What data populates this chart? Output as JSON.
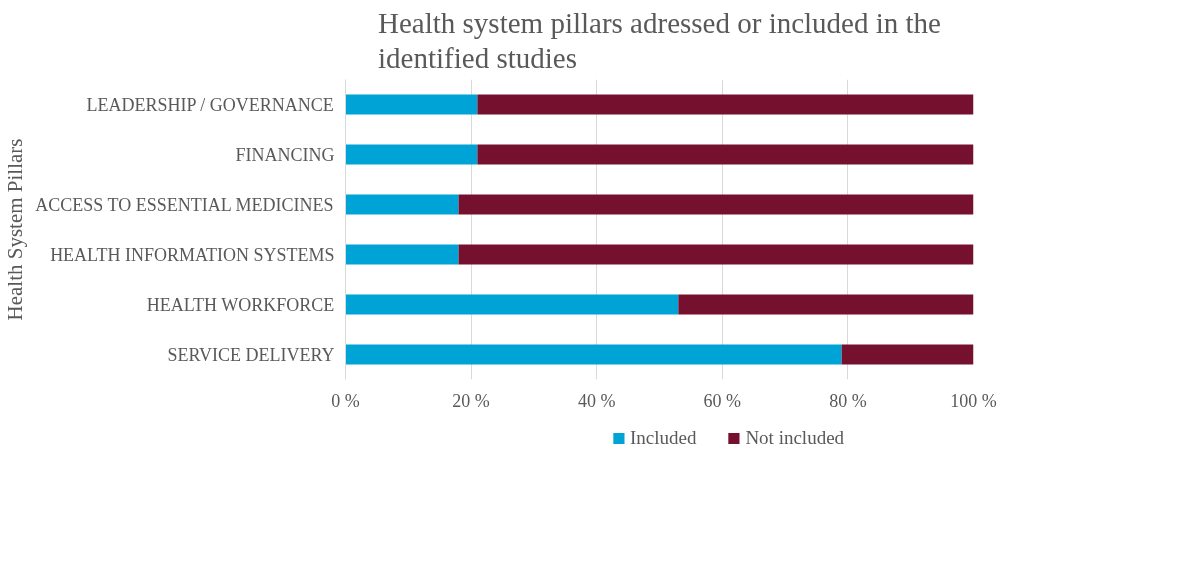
{
  "chart_data": {
    "type": "bar",
    "orientation": "horizontal",
    "stacked": true,
    "title": "Health system pillars adressed or included in the identified studies",
    "ylabel": "Health System Pillars",
    "categories": [
      "LEADERSHIP / GOVERNANCE",
      "FINANCING",
      "ACCESS TO ESSENTIAL MEDICINES",
      "HEALTH INFORMATION SYSTEMS",
      "HEALTH WORKFORCE",
      "SERVICE DELIVERY"
    ],
    "series": [
      {
        "name": "Included",
        "color": "#00a3d6",
        "values": [
          21,
          21,
          18,
          18,
          53,
          79
        ]
      },
      {
        "name": "Not included",
        "color": "#76102f",
        "values": [
          79,
          79,
          82,
          82,
          47,
          21
        ]
      }
    ],
    "xlim": [
      0,
      100
    ],
    "xticks": [
      {
        "value": 0,
        "label": "0 %"
      },
      {
        "value": 20,
        "label": "20 %"
      },
      {
        "value": 40,
        "label": "40 %"
      },
      {
        "value": 60,
        "label": "60 %"
      },
      {
        "value": 80,
        "label": "80 %"
      },
      {
        "value": 100,
        "label": "100 %"
      }
    ],
    "grid": "x",
    "legend": "bottom"
  }
}
